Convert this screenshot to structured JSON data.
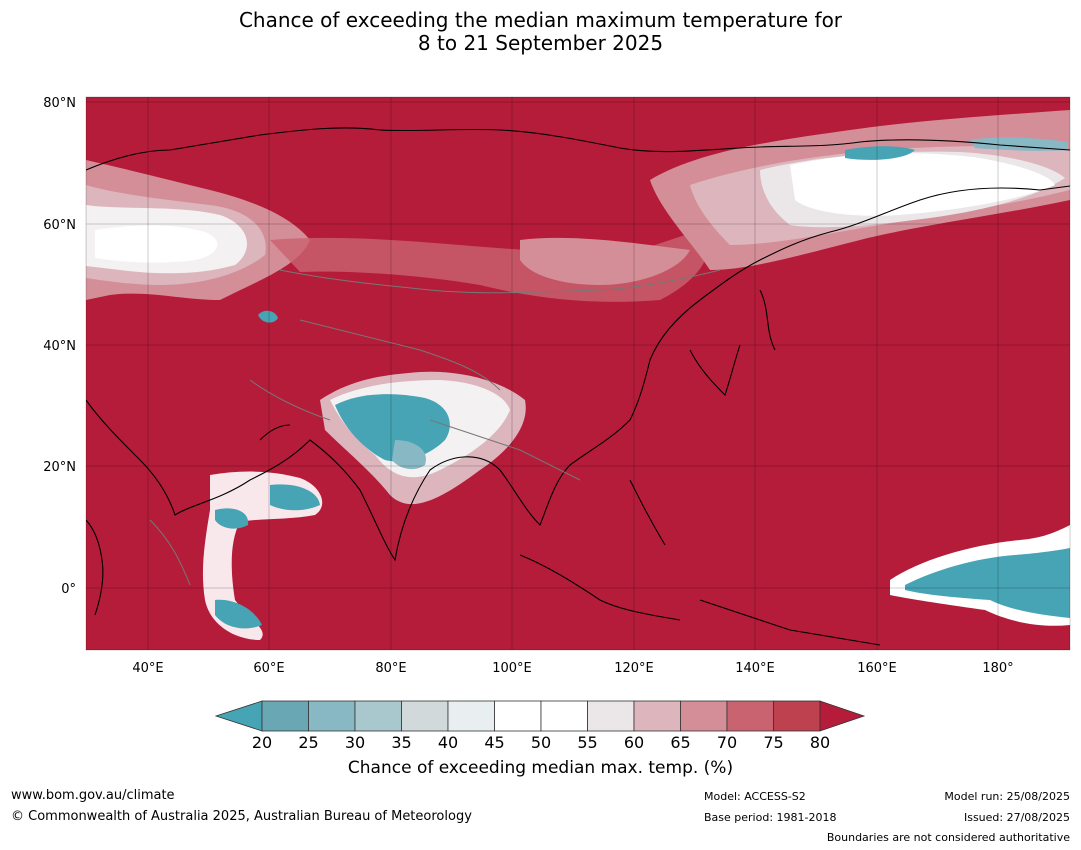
{
  "title": {
    "line1": "Chance of exceeding the median maximum temperature for",
    "line2": "8 to 21 September 2025"
  },
  "map": {
    "lat_labels": [
      "80°N",
      "60°N",
      "40°N",
      "20°N",
      "0°"
    ],
    "lon_labels": [
      "40°E",
      "60°E",
      "80°E",
      "100°E",
      "120°E",
      "140°E",
      "160°E",
      "180°"
    ],
    "extent": {
      "lon": [
        30,
        192
      ],
      "lat": [
        -10,
        81
      ]
    },
    "base_color": "#b41c3a"
  },
  "colorbar": {
    "ticks": [
      "20",
      "25",
      "30",
      "35",
      "40",
      "45",
      "50",
      "55",
      "60",
      "65",
      "70",
      "75",
      "80"
    ],
    "colors": [
      "#6aa7b4",
      "#88b8c4",
      "#a9c8ce",
      "#d1d9db",
      "#e9eff1",
      "#ffffff",
      "#ffffff",
      "#ebe6e8",
      "#ddb5bd",
      "#d48e98",
      "#c9636f",
      "#be4150"
    ],
    "low_color": "#46a4b5",
    "high_color": "#b41c3a",
    "label": "Chance of exceeding median max. temp. (%)"
  },
  "footer": {
    "url": "www.bom.gov.au/climate",
    "copyright": "© Commonwealth of Australia 2025, Australian Bureau of Meteorology",
    "model": "Model: ACCESS-S2",
    "base_period": "Base period: 1981-2018",
    "model_run": "Model run: 25/08/2025",
    "issued": "Issued: 27/08/2025",
    "boundaries": "Boundaries are not considered authoritative"
  }
}
